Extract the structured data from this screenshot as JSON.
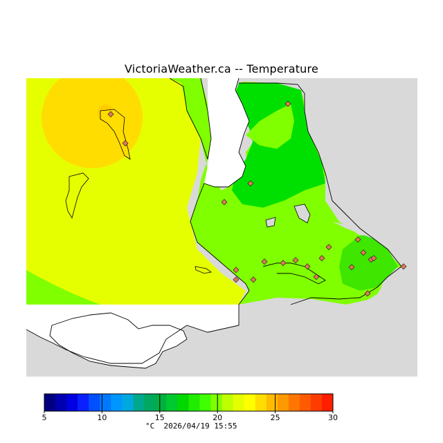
{
  "title": "VictoriaWeather.ca -- Temperature",
  "map": {
    "region": "Greater Victoria area",
    "land_color": "#d9d9d9",
    "water_color": "#ffffff",
    "coastline_color": "#000000",
    "station_marker_color": "#e07a56",
    "temperature_zones": [
      {
        "label": "20-21",
        "color": "#80ff00"
      },
      {
        "label": "21-22",
        "color": "#bfff00"
      },
      {
        "label": "22-23",
        "color": "#e6ff00"
      },
      {
        "label": "23-24",
        "color": "#ffff00"
      },
      {
        "label": "24-25",
        "color": "#ffdd00"
      },
      {
        "label": "19-20",
        "color": "#3ee600"
      },
      {
        "label": "18-19",
        "color": "#00e000"
      }
    ]
  },
  "legend": {
    "unit": "°C",
    "tick_labels": [
      "5",
      "10",
      "15",
      "20",
      "25",
      "30"
    ],
    "colors": [
      "#000080",
      "#0000b0",
      "#0000e0",
      "#0a20ff",
      "#0050ff",
      "#0078ff",
      "#0096ff",
      "#00a8e0",
      "#00a88c",
      "#00a860",
      "#00b040",
      "#00c830",
      "#00d800",
      "#20ec00",
      "#40ff00",
      "#80ff00",
      "#bfff00",
      "#e6ff00",
      "#ffff00",
      "#ffdd00",
      "#ffbb00",
      "#ff9900",
      "#ff7700",
      "#ff5a00",
      "#ff3c00",
      "#ff1e00"
    ]
  },
  "timestamp": "2026/04/19 15:55"
}
